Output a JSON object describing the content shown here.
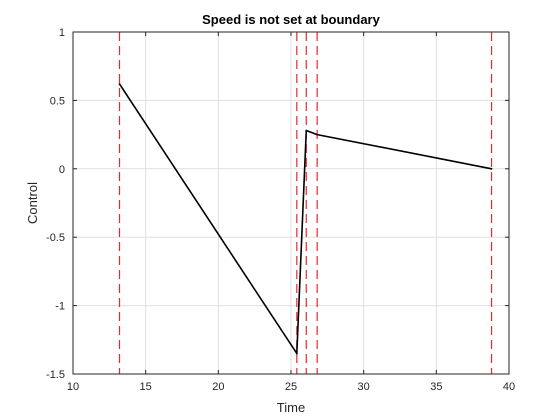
{
  "chart_data": {
    "type": "line",
    "title": "Speed is not set at boundary",
    "xlabel": "Time",
    "ylabel": "Control",
    "xlim": [
      10,
      40
    ],
    "ylim": [
      -1.5,
      1
    ],
    "xticks": [
      10,
      15,
      20,
      25,
      30,
      35,
      40
    ],
    "yticks": [
      -1.5,
      -1,
      -0.5,
      0,
      0.5,
      1
    ],
    "xtick_labels": [
      "10",
      "15",
      "20",
      "25",
      "30",
      "35",
      "40"
    ],
    "ytick_labels": [
      "-1.5",
      "-1",
      "-0.5",
      "0",
      "0.5",
      "1"
    ],
    "grid": true,
    "series": [
      {
        "color": "#000000",
        "x": [
          13.2,
          25.4,
          26.05,
          26.8,
          38.8
        ],
        "y": [
          0.62,
          -1.35,
          0.28,
          0.25,
          0.0
        ]
      }
    ],
    "vertical_lines": {
      "color": "#e8292f",
      "style": "dashed",
      "x": [
        13.2,
        25.4,
        26.05,
        26.8,
        38.8
      ]
    }
  }
}
